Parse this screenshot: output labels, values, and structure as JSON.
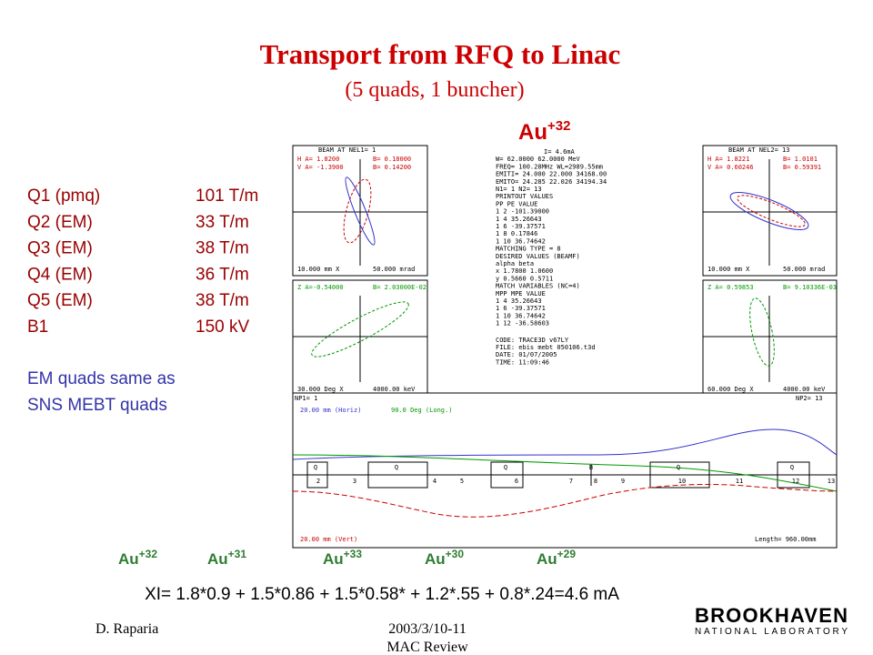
{
  "header": {
    "title": "Transport from RFQ to Linac",
    "subtitle": "(5 quads, 1 buncher)"
  },
  "ion": {
    "element": "Au",
    "charge": "+32"
  },
  "magnets": [
    [
      "Q1 (pmq)",
      "101 T/m"
    ],
    [
      "Q2 (EM)",
      "33 T/m"
    ],
    [
      "Q3 (EM)",
      "38 T/m"
    ],
    [
      "Q4 (EM)",
      "36 T/m"
    ],
    [
      "Q5 (EM)",
      "38 T/m"
    ],
    [
      "B1",
      "150 kV"
    ]
  ],
  "note": [
    "EM quads same as",
    "SNS MEBT quads"
  ],
  "trace3d": {
    "left": [
      "BEAM AT NEL1=  1",
      "H A=  1.8200",
      "B= 0.18000",
      "V A= -1.3900",
      "B= 0.14200",
      "10.000 mm   X",
      "50.000 mrad",
      "Z A=-0.54000",
      "B= 2.03000E-02",
      "30.000 Deg   X",
      "4000.00 keV"
    ],
    "right": [
      "BEAM AT NEL2=  13",
      "H A=  1.8221",
      "B=  1.0101",
      "V A= 0.60246",
      "B= 0.59391",
      "10.000 mm   X",
      "50.000 mrad",
      "Z A= 0.59853",
      "B= 9.10336E-03",
      "60.000 Deg   X",
      "4000.00 keV"
    ],
    "center": [
      "I=    4.6mA",
      "W=  62.0000   62.0000 MeV",
      "FREQ= 100.28MHz   WL=2989.55mm",
      "EMITI=  24.000   22.000 34168.00",
      "EMITO=  24.285   22.026 34194.34",
      "N1=    1   N2=   13",
      "PRINTOUT VALUES",
      "PP PE      VALUE",
      "1  2  -101.39000",
      "1  4    35.26643",
      "1  6   -39.37571",
      "1  8     0.17846",
      "1 10    36.74642",
      "MATCHING TYPE =  8",
      "DESIRED VALUES (BEAMF)",
      "alpha      beta",
      "x   1.7800    1.0600",
      "y   0.5660    0.5711",
      "MATCH VARIABLES (NC=4)",
      "MPP MPE      VALUE",
      "1   4   35.26643",
      "1   6  -39.37571",
      "1  10   36.74642",
      "1  12  -36.58603",
      "CODE:  TRACE3D v67LY",
      "FILE:  ebis mebt 050106.t3d",
      "DATE:  01/07/2005",
      "TIME:  11:09:46"
    ],
    "bottom": {
      "np1": "NP1=  1",
      "np2": "NP2=  13",
      "horiz": "20.00 mm (Horiz)",
      "long": "90.0 Deg (Long.)",
      "vert": "20.00 mm (Vert)",
      "length": "Length=   960.00mm",
      "elements": [
        "Q",
        "Q",
        "Q",
        "B",
        "Q",
        "Q"
      ],
      "numbers": [
        2,
        3,
        4,
        5,
        6,
        7,
        8,
        9,
        10,
        11,
        12,
        13
      ]
    }
  },
  "charge_states": [
    {
      "element": "Au",
      "charge": "+32"
    },
    {
      "element": "Au",
      "charge": "+31"
    },
    {
      "element": "Au",
      "charge": "+33"
    },
    {
      "element": "Au",
      "charge": "+30"
    },
    {
      "element": "Au",
      "charge": "+29"
    }
  ],
  "formula": "XI= 1.8*0.9 + 1.5*0.86 + 1.5*0.58* + 1.2*.55 +  0.8*.24=4.6 mA",
  "footer": {
    "author": "D. Raparia",
    "date": "2003/3/10-11",
    "event": "MAC Review"
  },
  "logo": {
    "name": "BROOKHAVEN",
    "sub": "NATIONAL LABORATORY"
  }
}
